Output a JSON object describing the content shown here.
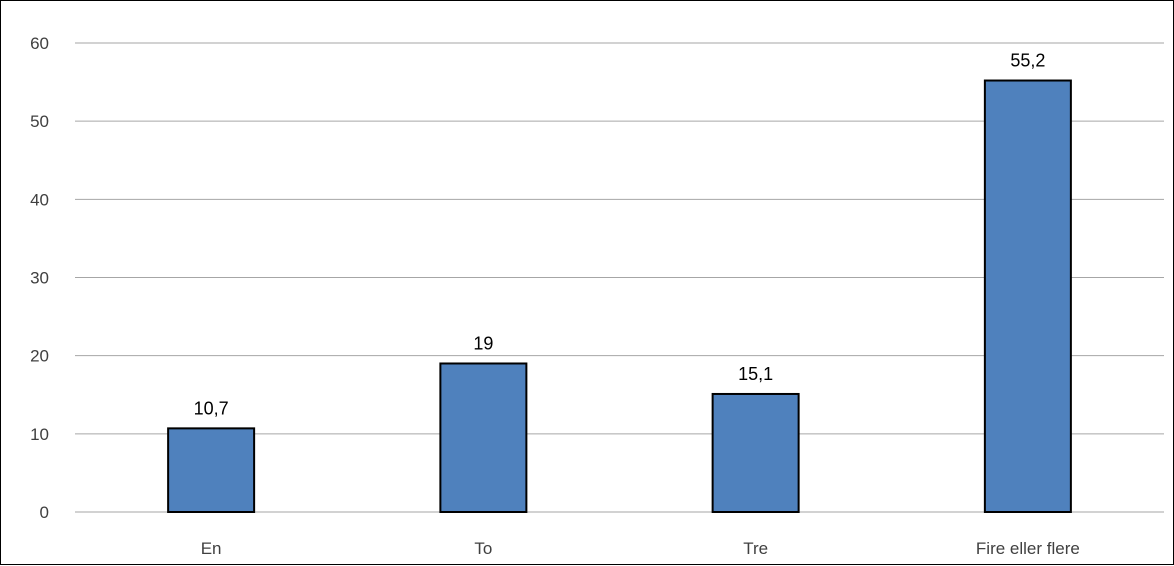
{
  "chart_data": {
    "type": "bar",
    "categories": [
      "En",
      "To",
      "Tre",
      "Fire eller flere"
    ],
    "values": [
      10.7,
      19,
      15.1,
      55.2
    ],
    "data_labels": [
      "10,7",
      "19",
      "15,1",
      "55,2"
    ],
    "title": "",
    "xlabel": "",
    "ylabel": "",
    "ylim": [
      0,
      60
    ],
    "yticks": [
      0,
      10,
      20,
      30,
      40,
      50,
      60
    ],
    "grid": true,
    "legend": "none",
    "colors": {
      "bar_fill": "#4f81bd",
      "bar_stroke": "#000000",
      "gridline": "#a6a6a6",
      "tick_text": "#404040",
      "label_text": "#000000"
    }
  }
}
